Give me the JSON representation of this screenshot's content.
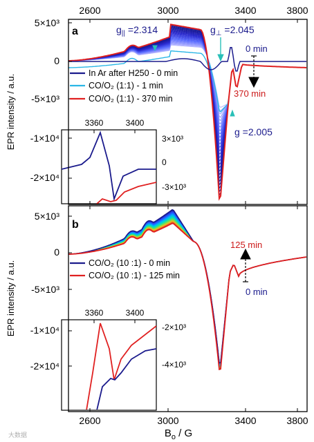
{
  "chart_data": [
    {
      "panel_label": "a",
      "type": "line",
      "x_top_ticks": [
        "2600",
        "3000",
        "3400",
        "3800"
      ],
      "y_ticks": [
        "5×10³",
        "0",
        "-5×10³",
        "-1×10⁴",
        "-2×10⁴"
      ],
      "xlim": [
        2300,
        3870
      ],
      "annotations": {
        "g_parallel": "g",
        "g_parallel_sub": "||",
        "g_parallel_val": " =2.314",
        "g_perp": "g",
        "g_perp_sub": "⊥",
        "g_perp_val": " =2.045",
        "g_iso": "g =2.005",
        "time_start": "0 min",
        "time_end": "370 min"
      },
      "legend": [
        {
          "label": "In Ar after H250 - 0 min",
          "color": "#1a1a8c"
        },
        {
          "label": "CO/O₂ (1:1)  - 1 min",
          "color": "#29b6e6"
        },
        {
          "label": "CO/O₂ (1:1) - 370 min",
          "color": "#e02020"
        }
      ],
      "inset": {
        "x_ticks": [
          "3360",
          "3400"
        ],
        "y_ticks": [
          "3×10³",
          "0",
          "-3×10³"
        ],
        "xlim": [
          3330,
          3440
        ]
      }
    },
    {
      "panel_label": "b",
      "type": "line",
      "x_bottom_ticks": [
        "2600",
        "3000",
        "3400",
        "3800"
      ],
      "y_ticks": [
        "5×10³",
        "0",
        "-5×10³",
        "-1×10⁴",
        "-2×10⁴"
      ],
      "xlabel": "B",
      "xlabel_sub": "o",
      "xlabel_unit": " / G",
      "xlim": [
        2300,
        3870
      ],
      "annotations": {
        "time_start": "0 min",
        "time_end": "125 min"
      },
      "legend": [
        {
          "label": "CO/O₂ (10 :1) - 0 min",
          "color": "#1a1a8c"
        },
        {
          "label": "CO/O₂ (10 :1) - 125 min",
          "color": "#e02020"
        }
      ],
      "inset": {
        "x_ticks": [
          "3360",
          "3400"
        ],
        "y_ticks": [
          "-2×10³",
          "-4×10³"
        ],
        "xlim": [
          3330,
          3440
        ]
      }
    }
  ],
  "ylabel": "EPR intensity / a.u.",
  "watermark": "大数据",
  "colors": {
    "navy": "#1a1a8c",
    "red": "#e02020",
    "cyan": "#29b6e6"
  }
}
